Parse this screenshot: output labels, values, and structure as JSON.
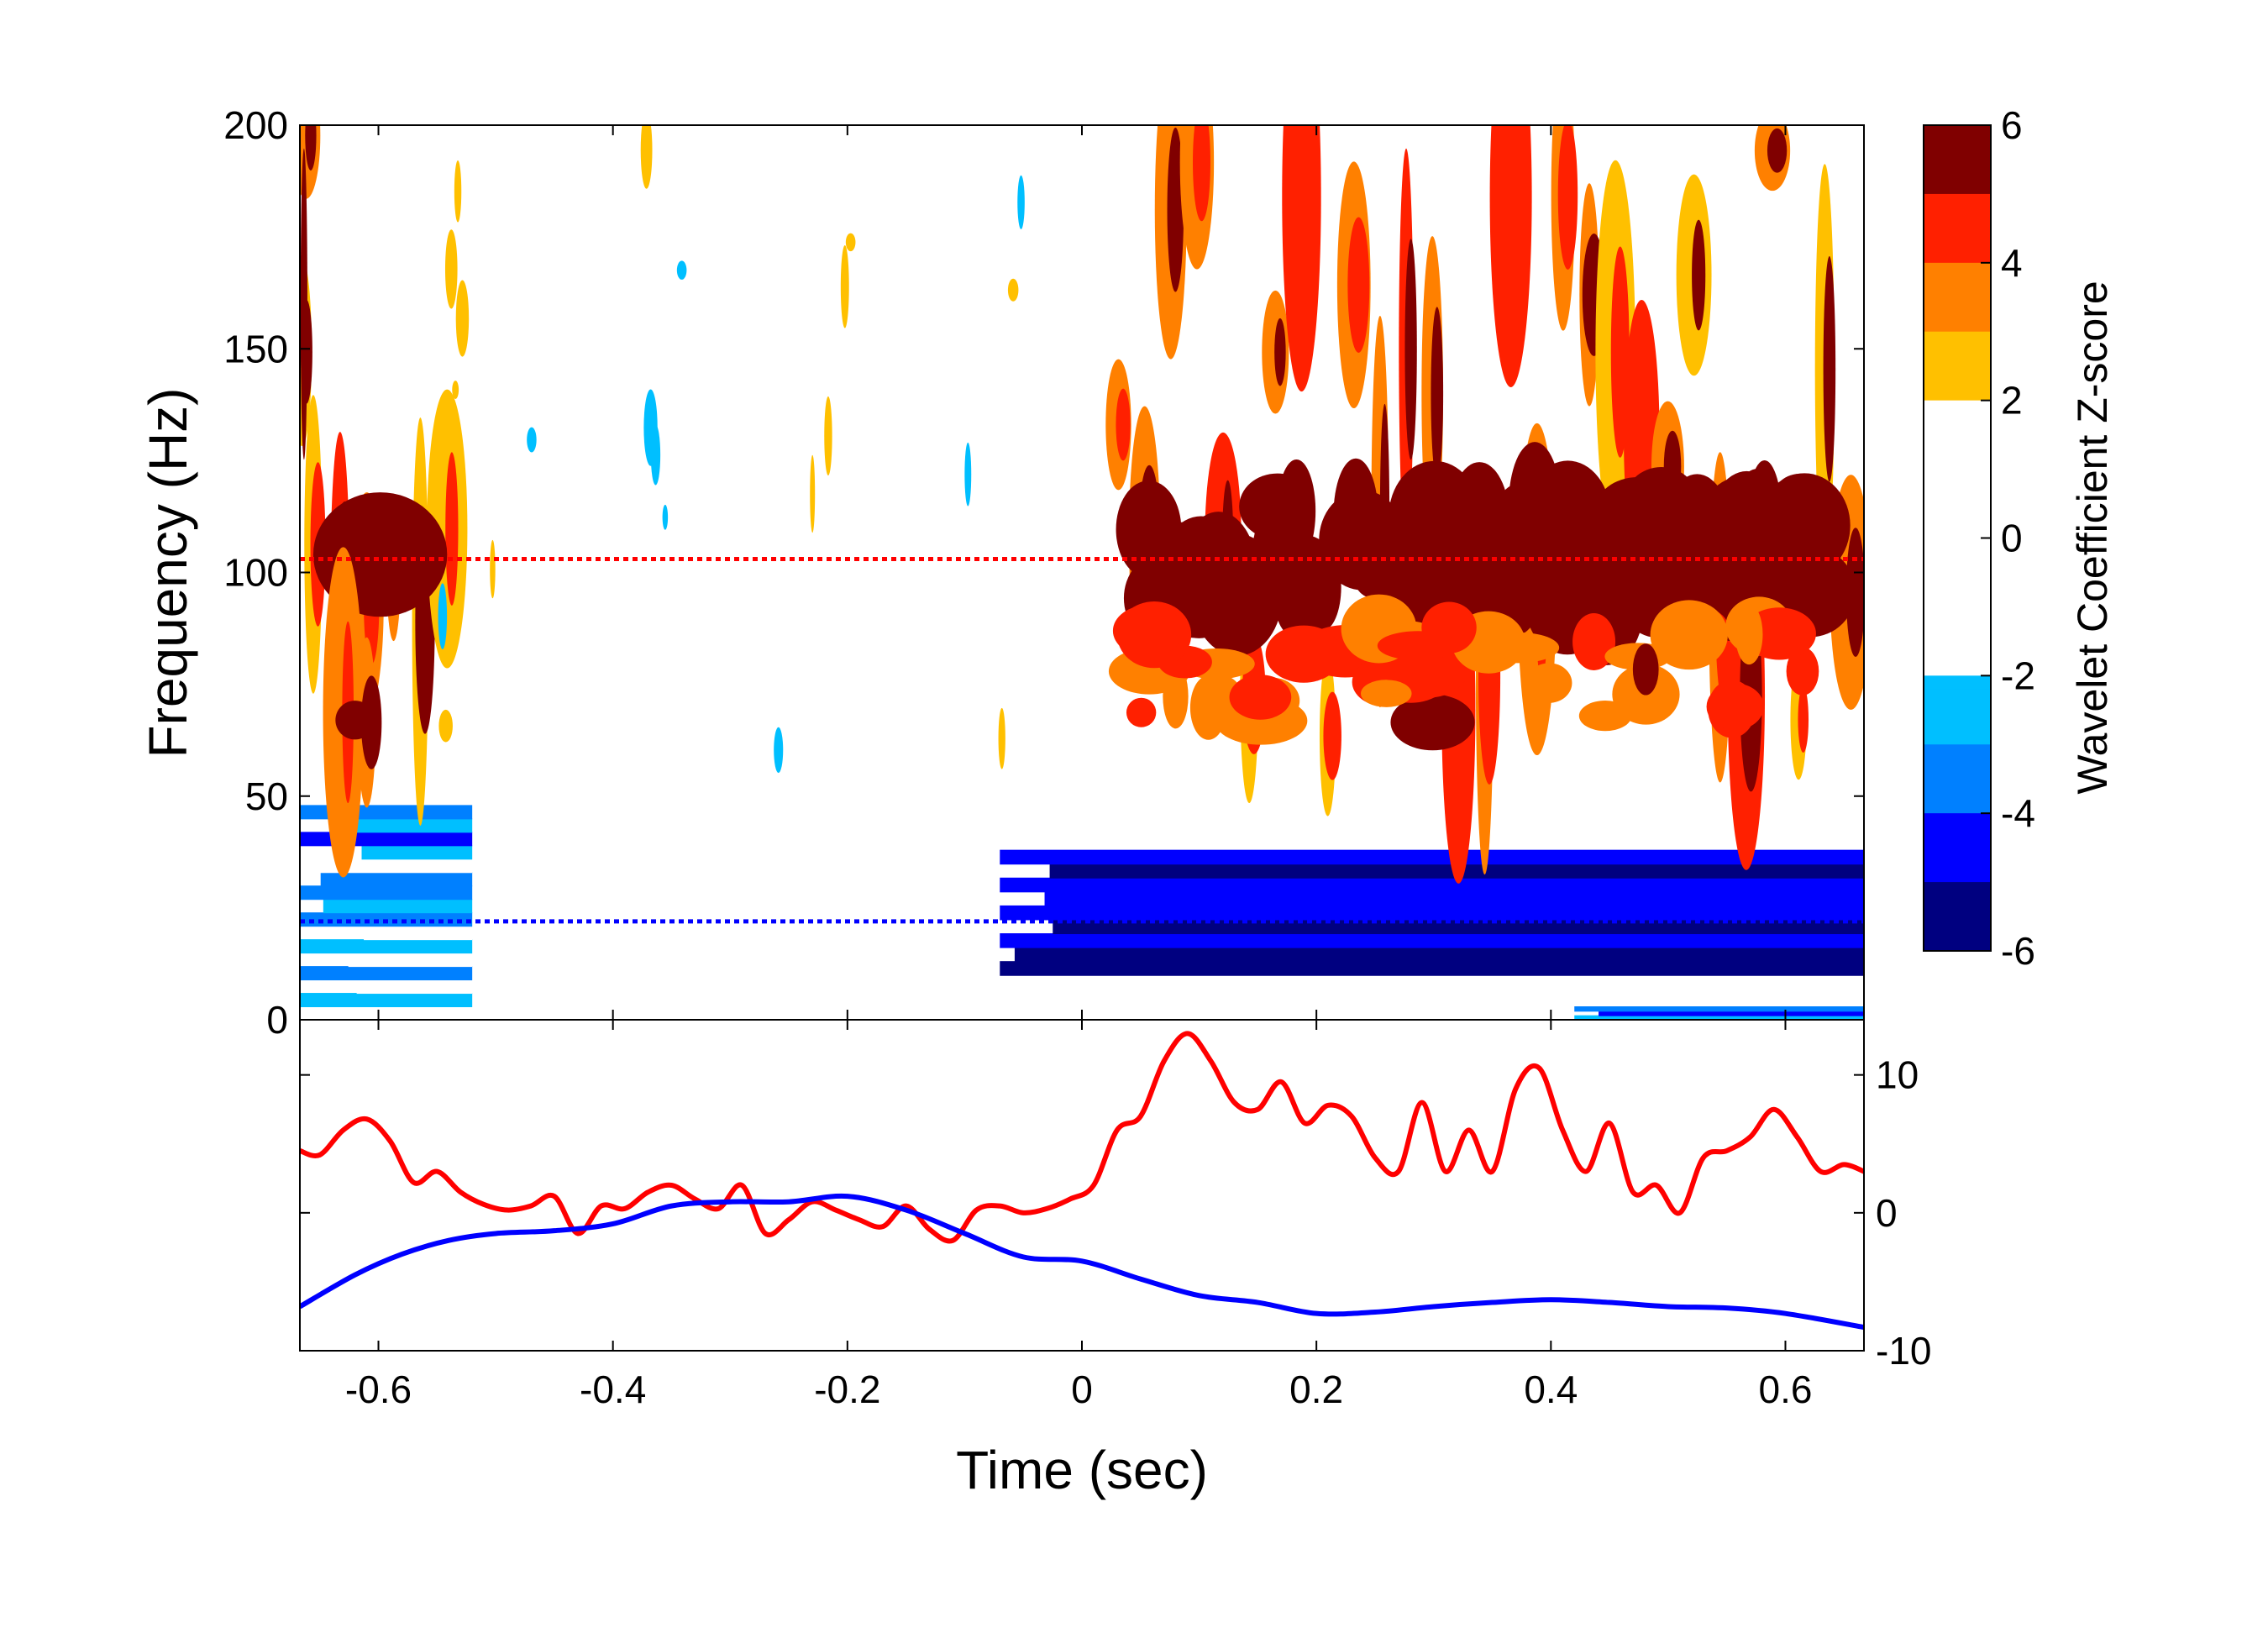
{
  "chart_data": [
    {
      "type": "heatmap",
      "name": "spectrogram",
      "xlabel": "Time (sec)",
      "ylabel": "Frequency (Hz)",
      "xlim": [
        -0.667,
        0.667
      ],
      "ylim": [
        0,
        200
      ],
      "yticks": [
        0,
        50,
        100,
        150,
        200
      ],
      "xticks": [
        -0.6,
        -0.4,
        -0.2,
        0,
        0.2,
        0.4,
        0.6
      ],
      "xtick_labels": [
        "-0.6",
        "-0.4",
        "-0.2",
        "0",
        "0.2",
        "0.4",
        "0.6"
      ],
      "colorbar": {
        "label": "Wavelet Coefficient Z-score",
        "range": [
          -6,
          6
        ],
        "ticks": [
          -6,
          -4,
          -2,
          0,
          2,
          4,
          6
        ],
        "threshold_white": [
          -2,
          2
        ],
        "colors_negative": [
          "#000080",
          "#0000ff",
          "#0080ff",
          "#00bfff"
        ],
        "colors_positive": [
          "#ffc000",
          "#ff8000",
          "#ff2000",
          "#800000"
        ]
      },
      "reference_lines": [
        {
          "freq": 103,
          "color": "#ff0000",
          "style": "dotted"
        },
        {
          "freq": 22,
          "color": "#0000ff",
          "style": "dotted"
        }
      ],
      "high_activity_regions": [
        {
          "t": [
            0.02,
            0.667
          ],
          "f": [
            62,
            200
          ],
          "z": 5
        },
        {
          "t": [
            -0.667,
            -0.53
          ],
          "f": [
            88,
            120
          ],
          "z": 5
        },
        {
          "t": [
            -0.667,
            -0.66
          ],
          "f": [
            120,
            200
          ],
          "z": 5
        },
        {
          "t": [
            -0.64,
            -0.6
          ],
          "f": [
            62,
            72
          ],
          "z": 4
        }
      ],
      "low_activity_regions": [
        {
          "t": [
            -0.07,
            0.667
          ],
          "f": [
            10,
            38
          ],
          "z": -5
        },
        {
          "t": [
            -0.667,
            -0.52
          ],
          "f": [
            3,
            48
          ],
          "z": -3
        },
        {
          "t": [
            0.42,
            0.667
          ],
          "f": [
            0,
            3
          ],
          "z": -4
        }
      ]
    },
    {
      "type": "line",
      "name": "band-power-traces",
      "xlim": [
        -0.667,
        0.667
      ],
      "ylim": [
        -10,
        14
      ],
      "yticks": [
        -10,
        0,
        10
      ],
      "ytick_labels": [
        "-10",
        "0",
        "10"
      ],
      "series": [
        {
          "color": "#ff0000",
          "x": [
            -0.667,
            -0.65,
            -0.63,
            -0.61,
            -0.59,
            -0.57,
            -0.55,
            -0.53,
            -0.51,
            -0.49,
            -0.47,
            -0.45,
            -0.43,
            -0.41,
            -0.39,
            -0.37,
            -0.35,
            -0.33,
            -0.31,
            -0.29,
            -0.27,
            -0.25,
            -0.23,
            -0.21,
            -0.19,
            -0.17,
            -0.15,
            -0.13,
            -0.11,
            -0.09,
            -0.07,
            -0.05,
            -0.03,
            -0.01,
            0.01,
            0.03,
            0.05,
            0.07,
            0.09,
            0.11,
            0.13,
            0.15,
            0.17,
            0.19,
            0.21,
            0.23,
            0.25,
            0.27,
            0.29,
            0.31,
            0.33,
            0.35,
            0.37,
            0.39,
            0.41,
            0.43,
            0.45,
            0.47,
            0.49,
            0.51,
            0.53,
            0.55,
            0.57,
            0.59,
            0.61,
            0.63,
            0.65,
            0.667
          ],
          "y": [
            4.5,
            4.2,
            6.0,
            6.8,
            5.2,
            2.2,
            3.0,
            1.5,
            0.6,
            0.2,
            0.5,
            1.2,
            -1.5,
            0.5,
            0.3,
            1.5,
            2.0,
            1.0,
            0.3,
            2.0,
            -1.5,
            -0.5,
            0.8,
            0.2,
            -0.5,
            -1.0,
            0.5,
            -1.2,
            -2.0,
            0.2,
            0.5,
            0.0,
            0.3,
            1.0,
            2.0,
            6.0,
            7.0,
            11.0,
            13.0,
            11.0,
            8.0,
            7.5,
            9.5,
            6.5,
            7.8,
            7.0,
            4.0,
            3.0,
            8.0,
            3.0,
            6.0,
            3.0,
            9.0,
            10.5,
            6.0,
            3.0,
            6.5,
            1.5,
            2.0,
            0.0,
            4.0,
            4.5,
            5.5,
            7.5,
            5.5,
            3.0,
            3.5,
            3.0
          ]
        },
        {
          "color": "#0000ff",
          "x": [
            -0.667,
            -0.62,
            -0.58,
            -0.54,
            -0.5,
            -0.45,
            -0.4,
            -0.35,
            -0.3,
            -0.25,
            -0.2,
            -0.15,
            -0.1,
            -0.05,
            0.0,
            0.05,
            0.1,
            0.15,
            0.2,
            0.25,
            0.3,
            0.35,
            0.4,
            0.45,
            0.5,
            0.55,
            0.6,
            0.667
          ],
          "y": [
            -6.8,
            -4.5,
            -3.0,
            -2.0,
            -1.5,
            -1.3,
            -0.8,
            0.5,
            0.8,
            0.8,
            1.2,
            0.2,
            -1.5,
            -3.2,
            -3.5,
            -4.8,
            -6.0,
            -6.5,
            -7.3,
            -7.2,
            -6.8,
            -6.5,
            -6.3,
            -6.5,
            -6.8,
            -6.9,
            -7.3,
            -8.3
          ]
        }
      ]
    }
  ]
}
